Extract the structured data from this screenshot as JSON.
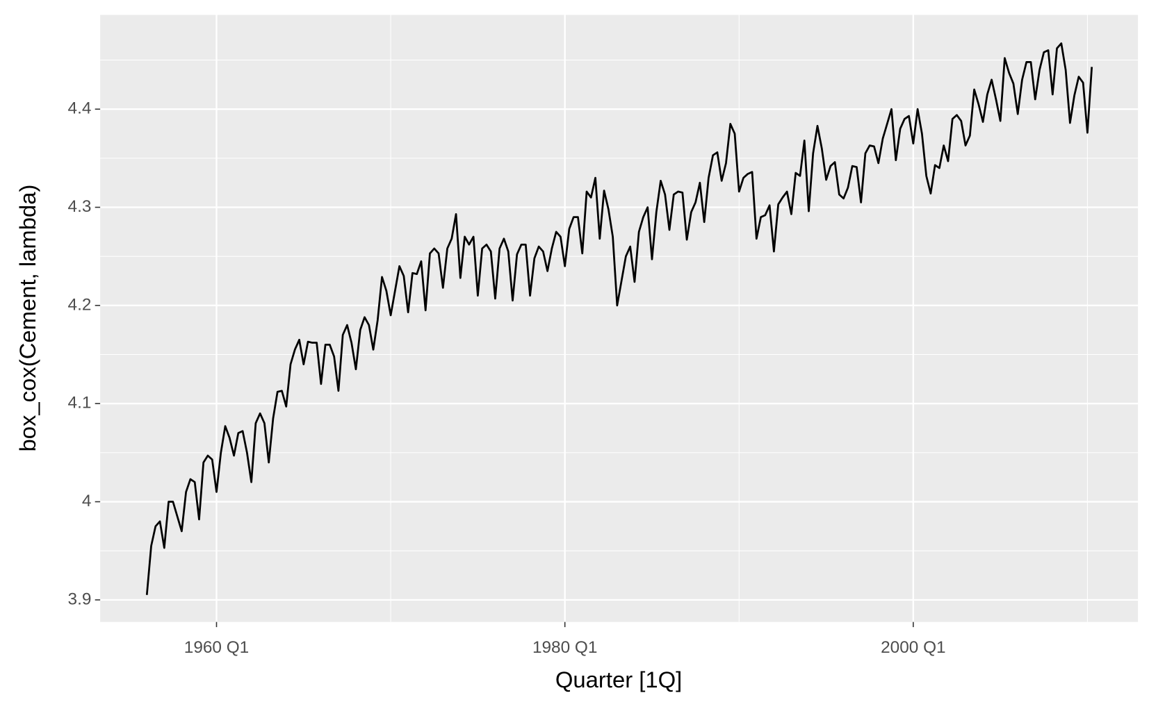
{
  "chart_data": {
    "type": "line",
    "xlabel": "Quarter [1Q]",
    "ylabel": "box_cox(Cement, lambda)",
    "x": [
      1956,
      1956.25,
      1956.5,
      1956.75,
      1957,
      1957.25,
      1957.5,
      1957.75,
      1958,
      1958.25,
      1958.5,
      1958.75,
      1959,
      1959.25,
      1959.5,
      1959.75,
      1960,
      1960.25,
      1960.5,
      1960.75,
      1961,
      1961.25,
      1961.5,
      1961.75,
      1962,
      1962.25,
      1962.5,
      1962.75,
      1963,
      1963.25,
      1963.5,
      1963.75,
      1964,
      1964.25,
      1964.5,
      1964.75,
      1965,
      1965.25,
      1965.5,
      1965.75,
      1966,
      1966.25,
      1966.5,
      1966.75,
      1967,
      1967.25,
      1967.5,
      1967.75,
      1968,
      1968.25,
      1968.5,
      1968.75,
      1969,
      1969.25,
      1969.5,
      1969.75,
      1970,
      1970.25,
      1970.5,
      1970.75,
      1971,
      1971.25,
      1971.5,
      1971.75,
      1972,
      1972.25,
      1972.5,
      1972.75,
      1973,
      1973.25,
      1973.5,
      1973.75,
      1974,
      1974.25,
      1974.5,
      1974.75,
      1975,
      1975.25,
      1975.5,
      1975.75,
      1976,
      1976.25,
      1976.5,
      1976.75,
      1977,
      1977.25,
      1977.5,
      1977.75,
      1978,
      1978.25,
      1978.5,
      1978.75,
      1979,
      1979.25,
      1979.5,
      1979.75,
      1980,
      1980.25,
      1980.5,
      1980.75,
      1981,
      1981.25,
      1981.5,
      1981.75,
      1982,
      1982.25,
      1982.5,
      1982.75,
      1983,
      1983.25,
      1983.5,
      1983.75,
      1984,
      1984.25,
      1984.5,
      1984.75,
      1985,
      1985.25,
      1985.5,
      1985.75,
      1986,
      1986.25,
      1986.5,
      1986.75,
      1987,
      1987.25,
      1987.5,
      1987.75,
      1988,
      1988.25,
      1988.5,
      1988.75,
      1989,
      1989.25,
      1989.5,
      1989.75,
      1990,
      1990.25,
      1990.5,
      1990.75,
      1991,
      1991.25,
      1991.5,
      1991.75,
      1992,
      1992.25,
      1992.5,
      1992.75,
      1993,
      1993.25,
      1993.5,
      1993.75,
      1994,
      1994.25,
      1994.5,
      1994.75,
      1995,
      1995.25,
      1995.5,
      1995.75,
      1996,
      1996.25,
      1996.5,
      1996.75,
      1997,
      1997.25,
      1997.5,
      1997.75,
      1998,
      1998.25,
      1998.5,
      1998.75,
      1999,
      1999.25,
      1999.5,
      1999.75,
      2000,
      2000.25,
      2000.5,
      2000.75,
      2001,
      2001.25,
      2001.5,
      2001.75,
      2002,
      2002.25,
      2002.5,
      2002.75,
      2003,
      2003.25,
      2003.5,
      2003.75,
      2004,
      2004.25,
      2004.5,
      2004.75,
      2005,
      2005.25,
      2005.5,
      2005.75,
      2006,
      2006.25,
      2006.5,
      2006.75,
      2007,
      2007.25,
      2007.5,
      2007.75,
      2008,
      2008.25,
      2008.5,
      2008.75,
      2009,
      2009.25,
      2009.5,
      2009.75,
      2010,
      2010.25
    ],
    "series": [
      {
        "name": "box_cox(Cement, lambda)",
        "color": "#000000",
        "values": [
          3.905,
          3.955,
          3.975,
          3.98,
          3.953,
          4.0,
          4.0,
          3.985,
          3.97,
          4.01,
          4.023,
          4.02,
          3.982,
          4.04,
          4.047,
          4.043,
          4.01,
          4.05,
          4.077,
          4.065,
          4.047,
          4.07,
          4.072,
          4.05,
          4.02,
          4.08,
          4.09,
          4.08,
          4.04,
          4.085,
          4.112,
          4.113,
          4.097,
          4.14,
          4.155,
          4.165,
          4.14,
          4.163,
          4.162,
          4.162,
          4.12,
          4.16,
          4.16,
          4.148,
          4.113,
          4.17,
          4.18,
          4.162,
          4.135,
          4.175,
          4.188,
          4.18,
          4.155,
          4.185,
          4.229,
          4.215,
          4.19,
          4.215,
          4.24,
          4.23,
          4.193,
          4.233,
          4.232,
          4.245,
          4.195,
          4.253,
          4.258,
          4.253,
          4.218,
          4.258,
          4.268,
          4.293,
          4.228,
          4.27,
          4.262,
          4.27,
          4.21,
          4.258,
          4.262,
          4.255,
          4.207,
          4.258,
          4.268,
          4.255,
          4.205,
          4.252,
          4.262,
          4.262,
          4.21,
          4.248,
          4.26,
          4.255,
          4.235,
          4.258,
          4.275,
          4.27,
          4.24,
          4.278,
          4.29,
          4.29,
          4.253,
          4.316,
          4.31,
          4.33,
          4.268,
          4.317,
          4.298,
          4.27,
          4.2,
          4.225,
          4.25,
          4.26,
          4.224,
          4.275,
          4.29,
          4.3,
          4.247,
          4.295,
          4.327,
          4.313,
          4.277,
          4.313,
          4.316,
          4.315,
          4.267,
          4.295,
          4.305,
          4.325,
          4.285,
          4.33,
          4.353,
          4.356,
          4.327,
          4.345,
          4.385,
          4.375,
          4.316,
          4.33,
          4.334,
          4.336,
          4.268,
          4.29,
          4.292,
          4.302,
          4.255,
          4.303,
          4.31,
          4.316,
          4.293,
          4.335,
          4.332,
          4.368,
          4.296,
          4.355,
          4.383,
          4.36,
          4.328,
          4.342,
          4.346,
          4.313,
          4.309,
          4.32,
          4.342,
          4.341,
          4.305,
          4.355,
          4.363,
          4.362,
          4.345,
          4.37,
          4.385,
          4.4,
          4.348,
          4.38,
          4.39,
          4.393,
          4.365,
          4.4,
          4.375,
          4.332,
          4.314,
          4.343,
          4.34,
          4.363,
          4.347,
          4.39,
          4.394,
          4.388,
          4.363,
          4.373,
          4.42,
          4.405,
          4.387,
          4.415,
          4.43,
          4.41,
          4.388,
          4.452,
          4.437,
          4.426,
          4.395,
          4.43,
          4.448,
          4.448,
          4.41,
          4.44,
          4.458,
          4.46,
          4.415,
          4.462,
          4.467,
          4.44,
          4.386,
          4.414,
          4.433,
          4.427,
          4.376,
          4.443
        ]
      }
    ],
    "xlim": [
      1953.32,
      2012.9
    ],
    "xticks": [
      {
        "value": 1960,
        "label": "1960 Q1"
      },
      {
        "value": 1980,
        "label": "1980 Q1"
      },
      {
        "value": 2000,
        "label": "2000 Q1"
      }
    ],
    "ylim": [
      3.8775,
      4.496
    ],
    "yticks": [
      3.9,
      4.0,
      4.1,
      4.2,
      4.3,
      4.4
    ],
    "grid": true
  }
}
